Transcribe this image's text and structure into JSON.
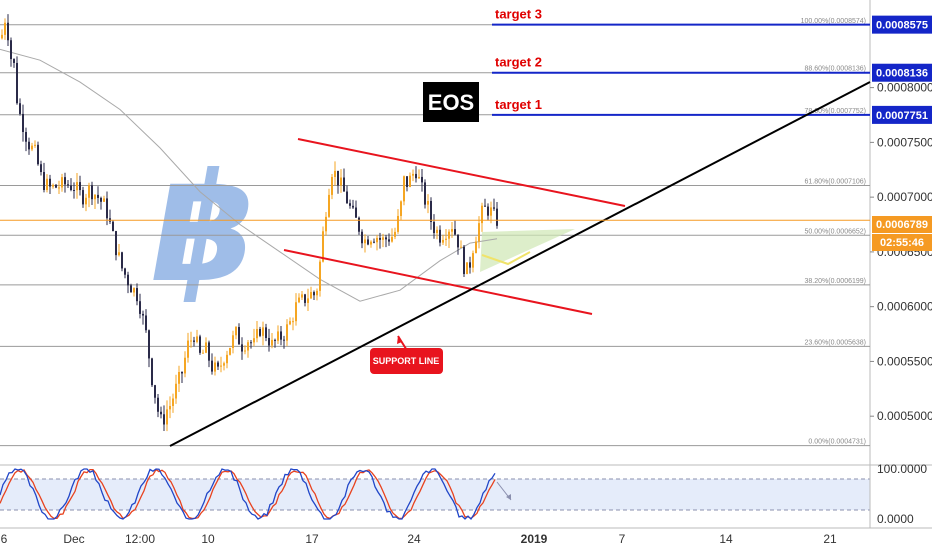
{
  "chart_data": {
    "type": "line",
    "symbol": "EOS",
    "series": [
      {
        "x": [
          0,
          3,
          6,
          10,
          14,
          18,
          22,
          28,
          35,
          42,
          50,
          58,
          66,
          74,
          82,
          90,
          98,
          106,
          114,
          122,
          130,
          138,
          146,
          152,
          158,
          162,
          166,
          170,
          176,
          182,
          188,
          194,
          200,
          206,
          212,
          218,
          224,
          230,
          236,
          242,
          248,
          254,
          260,
          266,
          272,
          278,
          284,
          290,
          296,
          302,
          308,
          312,
          316,
          320,
          324,
          328,
          332,
          336,
          340,
          346,
          352,
          358,
          364,
          370,
          376,
          382,
          388,
          394,
          400,
          404,
          408,
          412,
          416,
          420,
          424,
          428,
          432,
          436,
          440,
          446,
          452,
          458,
          462,
          466,
          470,
          474,
          478,
          482,
          486,
          490,
          494,
          497
        ],
        "values": [
          0.000845,
          0.00085,
          0.00087,
          0.00083,
          0.00082,
          0.00078,
          0.00077,
          0.00075,
          0.00074,
          0.000715,
          0.000708,
          0.00071,
          0.000712,
          0.00071,
          0.0007,
          0.000708,
          0.0007,
          0.00069,
          0.00066,
          0.000635,
          0.00062,
          0.00061,
          0.000575,
          0.000535,
          0.000505,
          0.000492,
          0.000505,
          0.00051,
          0.000525,
          0.00054,
          0.000565,
          0.000575,
          0.000555,
          0.00056,
          0.000545,
          0.00054,
          0.000555,
          0.000565,
          0.000575,
          0.000565,
          0.00057,
          0.000565,
          0.00058,
          0.000575,
          0.000565,
          0.00057,
          0.000575,
          0.000585,
          0.0006,
          0.000605,
          0.00061,
          0.000612,
          0.00061,
          0.00064,
          0.000675,
          0.000705,
          0.000725,
          0.00072,
          0.000712,
          0.0007,
          0.000685,
          0.000675,
          0.00066,
          0.000665,
          0.000665,
          0.00066,
          0.000663,
          0.000665,
          0.000685,
          0.000715,
          0.000712,
          0.00072,
          0.000725,
          0.000712,
          0.0007,
          0.00069,
          0.000675,
          0.00067,
          0.000665,
          0.00067,
          0.000675,
          0.00066,
          0.000645,
          0.00063,
          0.00064,
          0.00066,
          0.000672,
          0.000685,
          0.00069,
          0.000688,
          0.000682,
          0.000679
        ]
      },
      {
        "x": [
          0,
          40,
          80,
          120,
          160,
          200,
          240,
          280,
          320,
          360,
          400,
          440,
          470,
          497
        ],
        "values": [
          0.000835,
          0.000825,
          0.000805,
          0.00078,
          0.000745,
          0.000705,
          0.000675,
          0.00065,
          0.000625,
          0.000605,
          0.000615,
          0.000642,
          0.000658,
          0.000662
        ]
      }
    ],
    "y_axis": {
      "ylim": [
        0.00046,
        0.00088
      ],
      "ticks": [
        "0.0008000",
        "0.0007500",
        "0.0007000",
        "0.0006500",
        "0.0006000",
        "0.0005500",
        "0.0005000"
      ],
      "tick_values": [
        0.0008,
        0.00075,
        0.0007,
        0.00065,
        0.0006,
        0.00055,
        0.0005
      ]
    },
    "x_axis": {
      "ticks": [
        "6",
        "Dec",
        "12:00",
        "10",
        "17",
        "24",
        "2019",
        "7",
        "14",
        "21"
      ]
    },
    "fibonacci_levels": [
      {
        "label": "100.00%(0.0008574)",
        "value": 0.0008574
      },
      {
        "label": "88.60%(0.0008136)",
        "value": 0.0008136
      },
      {
        "label": "78.60%(0.0007752)",
        "value": 0.0007752
      },
      {
        "label": "61.80%(0.0007106)",
        "value": 0.0007106
      },
      {
        "label": "50.00%(0.0006652)",
        "value": 0.0006652
      },
      {
        "label": "38.20%(0.0006199)",
        "value": 0.0006199
      },
      {
        "label": "23.60%(0.0005638)",
        "value": 0.0005638
      },
      {
        "label": "0.00%(0.0004731)",
        "value": 0.0004731
      }
    ],
    "targets": [
      {
        "label": "target 3",
        "value": 0.0008575,
        "tag": "0.0008575"
      },
      {
        "label": "target 2",
        "value": 0.0008136,
        "tag": "0.0008136"
      },
      {
        "label": "target 1",
        "value": 0.0007751,
        "tag": "0.0007751"
      }
    ],
    "current_price": {
      "value": 0.0006789,
      "tag": "0.0006789",
      "countdown": "02:55:46"
    },
    "support_label": "SUPPORT LINE",
    "oscillator": {
      "ticks": [
        "100.0000",
        "0.0000"
      ],
      "band": [
        20,
        80
      ]
    },
    "colors": {
      "target": "#1426c8",
      "channel": "#e8141e",
      "support": "#000000",
      "current": "#f59a23",
      "up_candle": "#f5a623",
      "down_candle": "#2a2a48",
      "fib": "#8a8a8a",
      "bitcoin": "#9fbde8"
    }
  }
}
